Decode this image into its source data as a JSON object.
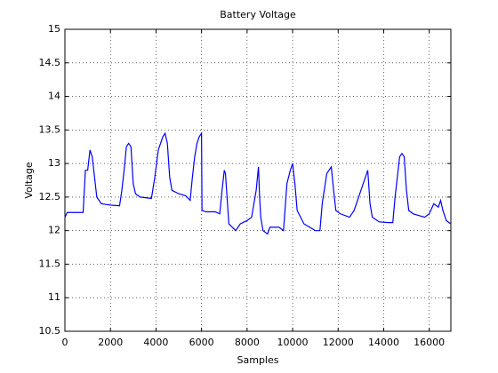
{
  "chart_data": {
    "type": "line",
    "title": "Battery Voltage",
    "xlabel": "Samples",
    "ylabel": "Voltage",
    "x": [
      0,
      100,
      800,
      900,
      1000,
      1100,
      1200,
      1300,
      1400,
      1600,
      2000,
      2400,
      2500,
      2600,
      2700,
      2800,
      2900,
      3000,
      3100,
      3300,
      3800,
      3950,
      4100,
      4300,
      4400,
      4500,
      4600,
      4700,
      5000,
      5300,
      5500,
      5600,
      5700,
      5800,
      5900,
      6000,
      6020,
      6200,
      6600,
      6800,
      6900,
      7000,
      7050,
      7100,
      7200,
      7500,
      7700,
      8000,
      8200,
      8400,
      8500,
      8550,
      8600,
      8700,
      8900,
      9000,
      9400,
      9600,
      9750,
      9900,
      10000,
      10100,
      10200,
      10500,
      11000,
      11200,
      11300,
      11500,
      11700,
      11800,
      11900,
      12100,
      12500,
      12700,
      12900,
      13100,
      13300,
      13400,
      13500,
      13800,
      14200,
      14400,
      14500,
      14700,
      14800,
      14900,
      15000,
      15100,
      15300,
      15800,
      16000,
      16200,
      16400,
      16500,
      16600,
      16750,
      16950
    ],
    "series": [
      {
        "name": "Voltage",
        "color": "#0000ff",
        "values": [
          12.2,
          12.27,
          12.27,
          12.9,
          12.9,
          13.2,
          13.1,
          12.8,
          12.5,
          12.4,
          12.38,
          12.37,
          12.6,
          12.9,
          13.25,
          13.3,
          13.25,
          12.7,
          12.55,
          12.5,
          12.48,
          12.8,
          13.2,
          13.4,
          13.45,
          13.3,
          12.8,
          12.6,
          12.55,
          12.52,
          12.45,
          12.8,
          13.1,
          13.3,
          13.4,
          13.45,
          12.3,
          12.28,
          12.28,
          12.25,
          12.6,
          12.9,
          12.85,
          12.6,
          12.1,
          12.0,
          12.1,
          12.15,
          12.2,
          12.6,
          12.95,
          12.5,
          12.2,
          12.0,
          11.95,
          12.05,
          12.05,
          12.0,
          12.7,
          12.9,
          13.0,
          12.7,
          12.3,
          12.1,
          12.0,
          12.0,
          12.4,
          12.85,
          12.95,
          12.6,
          12.3,
          12.25,
          12.2,
          12.3,
          12.5,
          12.7,
          12.9,
          12.4,
          12.2,
          12.13,
          12.12,
          12.12,
          12.5,
          13.1,
          13.15,
          13.1,
          12.6,
          12.3,
          12.25,
          12.2,
          12.25,
          12.4,
          12.35,
          12.45,
          12.3,
          12.15,
          12.1
        ]
      }
    ],
    "xlim": [
      0,
      16950
    ],
    "xticks": [
      0,
      2000,
      4000,
      6000,
      8000,
      10000,
      12000,
      14000,
      16000
    ],
    "ylim": [
      10.5,
      15
    ],
    "yticks": [
      10.5,
      11,
      11.5,
      12,
      12.5,
      13,
      13.5,
      14,
      14.5,
      15
    ],
    "grid": true
  }
}
